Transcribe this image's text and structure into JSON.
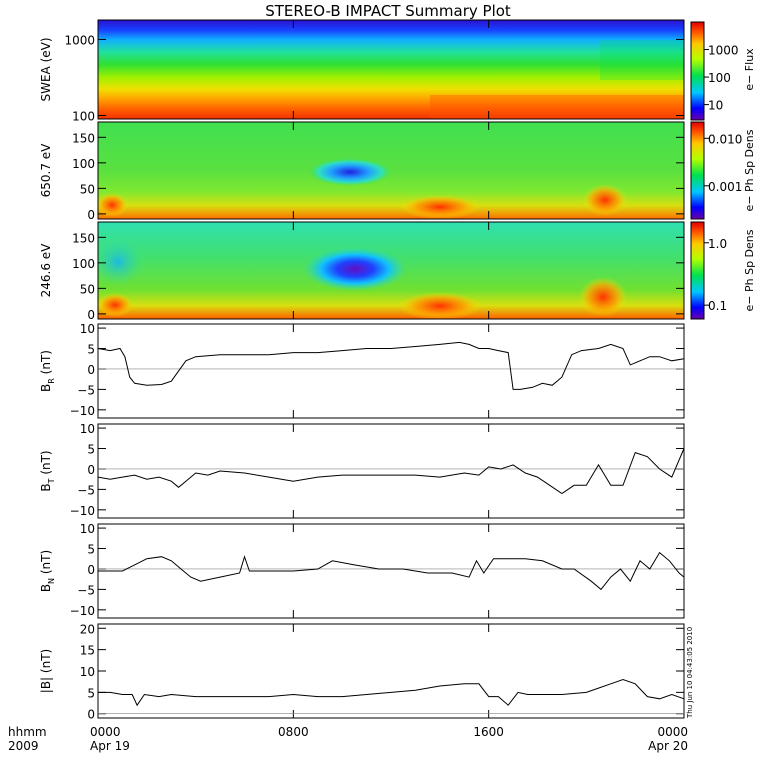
{
  "title": "STEREO-B IMPACT Summary Plot",
  "timestamp": "Thu Jun 10 04:43:05 2010",
  "chart_data": [
    {
      "type": "heatmap",
      "ylabel": "SWEA (eV)",
      "yscale": "log",
      "ylim": [
        90,
        1800
      ],
      "yticks": [
        {
          "v": 100,
          "t": "100"
        },
        {
          "v": 1000,
          "t": "1000"
        }
      ],
      "colorbar": {
        "label": "e− Flux",
        "scale": "log",
        "range": [
          3,
          10000
        ],
        "ticks": [
          {
            "v": 10,
            "t": "10"
          },
          {
            "v": 100,
            "t": "100"
          },
          {
            "v": 1000,
            "t": "1000"
          }
        ]
      }
    },
    {
      "type": "heatmap",
      "ylabel": "650.7 eV",
      "ylim": [
        -10,
        180
      ],
      "yticks": [
        {
          "v": 0,
          "t": "0"
        },
        {
          "v": 50,
          "t": "50"
        },
        {
          "v": 100,
          "t": "100"
        },
        {
          "v": 150,
          "t": "150"
        }
      ],
      "colorbar": {
        "label": "e− Ph Sp Dens",
        "scale": "log",
        "range": [
          0.0002,
          0.02
        ],
        "ticks": [
          {
            "v": 0.001,
            "t": "0.001"
          },
          {
            "v": 0.01,
            "t": "0.010"
          }
        ]
      }
    },
    {
      "type": "heatmap",
      "ylabel": "246.6 eV",
      "ylim": [
        -10,
        180
      ],
      "yticks": [
        {
          "v": 0,
          "t": "0"
        },
        {
          "v": 50,
          "t": "50"
        },
        {
          "v": 100,
          "t": "100"
        },
        {
          "v": 150,
          "t": "150"
        }
      ],
      "colorbar": {
        "label": "e− Ph Sp Dens",
        "scale": "log",
        "range": [
          0.06,
          2
        ],
        "ticks": [
          {
            "v": 0.1,
            "t": "0.1"
          },
          {
            "v": 1.0,
            "t": "1.0"
          }
        ]
      }
    },
    {
      "type": "line",
      "ylabel": "B",
      "ysub": "R",
      "yunit": "(nT)",
      "ylim": [
        -12,
        11
      ],
      "yticks": [
        {
          "v": -10,
          "t": "−10"
        },
        {
          "v": -5,
          "t": "−5"
        },
        {
          "v": 0,
          "t": "0"
        },
        {
          "v": 5,
          "t": "5"
        },
        {
          "v": 10,
          "t": "10"
        }
      ],
      "x_hours": [
        0,
        0.5,
        0.9,
        1.1,
        1.3,
        1.5,
        2.0,
        2.6,
        3.0,
        3.6,
        4.0,
        5.0,
        6.0,
        7.0,
        8.0,
        9.0,
        10.0,
        11.0,
        12.0,
        13.0,
        14.0,
        14.8,
        15.2,
        15.6,
        16.0,
        16.4,
        16.8,
        17.0,
        17.3,
        17.8,
        18.2,
        18.6,
        19.0,
        19.4,
        19.8,
        20.5,
        21.0,
        21.5,
        21.8,
        22.2,
        22.6,
        23.0,
        23.5,
        24.0
      ],
      "y": [
        5,
        4.5,
        5,
        3,
        -2,
        -3.5,
        -4,
        -3.8,
        -3,
        2,
        3,
        3.5,
        3.5,
        3.5,
        4,
        4,
        4.5,
        5,
        5,
        5.5,
        6,
        6.5,
        6,
        5,
        5,
        4.5,
        4,
        -5,
        -5,
        -4.5,
        -3.5,
        -4,
        -2,
        3.5,
        4.5,
        5,
        6,
        5,
        1,
        2,
        3,
        3,
        2,
        2.5
      ]
    },
    {
      "type": "line",
      "ylabel": "B",
      "ysub": "T",
      "yunit": "(nT)",
      "ylim": [
        -12,
        11
      ],
      "yticks": [
        {
          "v": -10,
          "t": "−10"
        },
        {
          "v": -5,
          "t": "−5"
        },
        {
          "v": 0,
          "t": "0"
        },
        {
          "v": 5,
          "t": "5"
        },
        {
          "v": 10,
          "t": "10"
        }
      ],
      "x_hours": [
        0,
        0.5,
        1.0,
        1.5,
        2.0,
        2.5,
        3.0,
        3.3,
        3.6,
        4.0,
        4.5,
        5.0,
        6.0,
        7.0,
        8.0,
        9.0,
        10.0,
        11.0,
        12.0,
        13.0,
        14.0,
        15.0,
        15.6,
        16.0,
        16.5,
        17.0,
        17.5,
        18.0,
        18.5,
        19.0,
        19.5,
        20.0,
        20.5,
        21.0,
        21.5,
        22.0,
        22.5,
        23.0,
        23.5,
        24.0
      ],
      "y": [
        -2,
        -2.5,
        -2,
        -1.5,
        -2.5,
        -2,
        -3,
        -4.5,
        -3,
        -1,
        -1.5,
        -0.5,
        -1,
        -2,
        -3,
        -2,
        -1.5,
        -1.5,
        -1.5,
        -1.5,
        -2,
        -1,
        -1.5,
        0.5,
        0,
        1,
        -1,
        -2,
        -4,
        -6,
        -4,
        -4,
        1,
        -4,
        -4,
        4,
        3,
        0,
        -2,
        5
      ]
    },
    {
      "type": "line",
      "ylabel": "B",
      "ysub": "N",
      "yunit": "(nT)",
      "ylim": [
        -12,
        11
      ],
      "yticks": [
        {
          "v": -10,
          "t": "−10"
        },
        {
          "v": -5,
          "t": "−5"
        },
        {
          "v": 0,
          "t": "0"
        },
        {
          "v": 5,
          "t": "5"
        },
        {
          "v": 10,
          "t": "10"
        }
      ],
      "x_hours": [
        0,
        0.5,
        1.0,
        1.5,
        2.0,
        2.6,
        3.0,
        3.4,
        3.8,
        4.2,
        5.0,
        5.8,
        6.0,
        6.2,
        6.4,
        7.0,
        8.0,
        9.0,
        9.6,
        10.5,
        11.5,
        12.5,
        13.5,
        14.5,
        15.2,
        15.5,
        15.8,
        16.2,
        16.6,
        17.5,
        18.2,
        19.0,
        19.5,
        20.2,
        20.6,
        21.0,
        21.4,
        21.8,
        22.2,
        22.6,
        23.0,
        23.4,
        23.8,
        24.0
      ],
      "y": [
        -0.5,
        -0.5,
        -0.5,
        1,
        2.5,
        3,
        2,
        0,
        -2,
        -3,
        -2,
        -1,
        3,
        -0.5,
        -0.5,
        -0.5,
        -0.5,
        0,
        2,
        1,
        0,
        0,
        -1,
        -1,
        -2,
        2,
        -1,
        2.5,
        2.5,
        2.5,
        2,
        0,
        0,
        -3,
        -5,
        -2,
        0,
        -3,
        2,
        0,
        4,
        2,
        -1,
        -2
      ]
    },
    {
      "type": "line",
      "ylabel": "|B|",
      "yunit": "(nT)",
      "ylim": [
        -1,
        21
      ],
      "yticks": [
        {
          "v": 0,
          "t": "0"
        },
        {
          "v": 5,
          "t": "5"
        },
        {
          "v": 10,
          "t": "10"
        },
        {
          "v": 15,
          "t": "15"
        },
        {
          "v": 20,
          "t": "20"
        }
      ],
      "x_hours": [
        0,
        0.5,
        1.0,
        1.4,
        1.6,
        1.9,
        2.5,
        3.0,
        4.0,
        5.0,
        6.0,
        7.0,
        8.0,
        9.0,
        10.0,
        11.0,
        12.0,
        13.0,
        14.0,
        15.0,
        15.6,
        16.0,
        16.4,
        16.8,
        17.2,
        17.6,
        18.0,
        19.0,
        20.0,
        20.5,
        21.0,
        21.5,
        22.0,
        22.5,
        23.0,
        23.5,
        24.0
      ],
      "y": [
        5,
        5,
        4.5,
        4.5,
        2,
        4.5,
        4,
        4.5,
        4,
        4,
        4,
        4,
        4.5,
        4,
        4,
        4.5,
        5,
        5.5,
        6.5,
        7,
        7,
        4,
        4,
        2,
        5,
        4.5,
        4.5,
        4.5,
        5,
        6,
        7,
        8,
        7,
        4,
        3.5,
        4.5,
        3.5
      ]
    }
  ],
  "x_axis": {
    "range_hours": [
      0,
      24
    ],
    "hhmm_label": "hhmm",
    "year_label": "2009",
    "ticks": [
      {
        "h": 0,
        "time": "0000",
        "date": "Apr 19"
      },
      {
        "h": 8,
        "time": "0800",
        "date": ""
      },
      {
        "h": 16,
        "time": "1600",
        "date": ""
      },
      {
        "h": 24,
        "time": "0000",
        "date": "Apr 20"
      }
    ]
  }
}
